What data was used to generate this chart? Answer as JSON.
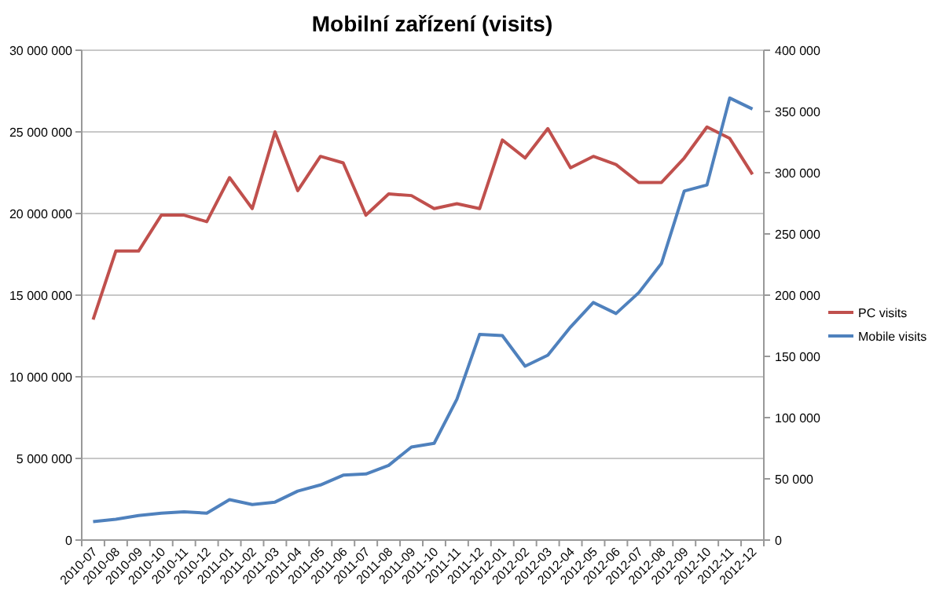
{
  "chart_data": {
    "type": "line",
    "title": "Mobilní zařízení (visits)",
    "categories": [
      "2010-07",
      "2010-08",
      "2010-09",
      "2010-10",
      "2010-11",
      "2010-12",
      "2011-01",
      "2011-02",
      "2011-03",
      "2011-04",
      "2011-05",
      "2011-06",
      "2011-07",
      "2011-08",
      "2011-09",
      "2011-10",
      "2011-11",
      "2011-12",
      "2012-01",
      "2012-02",
      "2012-03",
      "2012-04",
      "2012-05",
      "2012-06",
      "2012-07",
      "2012-08",
      "2012-09",
      "2012-10",
      "2012-11",
      "2012-12"
    ],
    "series": [
      {
        "name": "PC visits",
        "color": "#c0504d",
        "values": [
          13500000,
          17700000,
          17700000,
          19900000,
          19900000,
          19500000,
          22200000,
          20300000,
          25000000,
          21400000,
          23500000,
          23100000,
          19900000,
          21200000,
          21100000,
          20300000,
          20600000,
          20300000,
          24500000,
          23400000,
          25200000,
          22800000,
          23500000,
          23000000,
          21900000,
          21900000,
          23400000,
          25300000,
          24600000,
          22400000
        ]
      },
      {
        "name": "Mobile visits",
        "color": "#4f81bd",
        "axis": "y2",
        "values": [
          15000,
          17000,
          20000,
          22000,
          23000,
          22000,
          33000,
          29000,
          31000,
          40000,
          45000,
          53000,
          54000,
          61000,
          76000,
          79000,
          115000,
          168000,
          167000,
          142000,
          151000,
          174000,
          194000,
          185000,
          202000,
          226000,
          285000,
          290000,
          361000,
          352000
        ]
      }
    ],
    "ylim": [
      0,
      30000000
    ],
    "yticks": [
      {
        "value": 0,
        "label": "0"
      },
      {
        "value": 5000000,
        "label": "5 000 000"
      },
      {
        "value": 10000000,
        "label": "10 000 000"
      },
      {
        "value": 15000000,
        "label": "15 000 000"
      },
      {
        "value": 20000000,
        "label": "20 000 000"
      },
      {
        "value": 25000000,
        "label": "25 000 000"
      },
      {
        "value": 30000000,
        "label": "30 000 000"
      }
    ],
    "y2lim": [
      0,
      400000
    ],
    "y2ticks": [
      {
        "value": 0,
        "label": "0"
      },
      {
        "value": 50000,
        "label": "50 000"
      },
      {
        "value": 100000,
        "label": "100 000"
      },
      {
        "value": 150000,
        "label": "150 000"
      },
      {
        "value": 200000,
        "label": "200 000"
      },
      {
        "value": 250000,
        "label": "250 000"
      },
      {
        "value": 300000,
        "label": "300 000"
      },
      {
        "value": 350000,
        "label": "350 000"
      },
      {
        "value": 400000,
        "label": "400 000"
      }
    ],
    "grid": "y",
    "legend": "right",
    "marker": "none",
    "line_style": "solid"
  }
}
